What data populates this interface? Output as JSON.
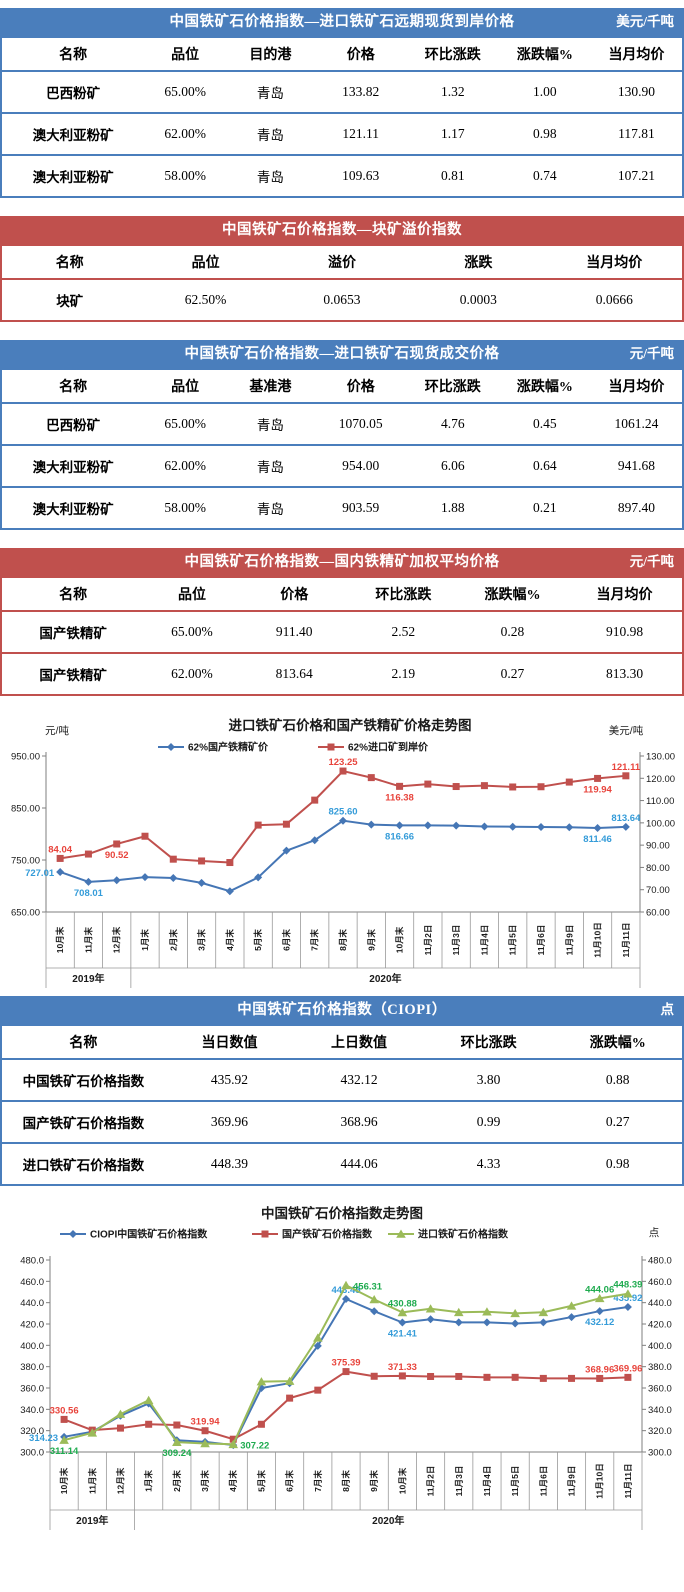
{
  "theme": {
    "blue": "#4a7ebc",
    "red": "#c0504d",
    "white": "#ffffff"
  },
  "tables": [
    {
      "theme": "blue",
      "title": "中国铁矿石价格指数—进口铁矿石远期现货到岸价格",
      "unit": "美元/千吨",
      "headers": [
        "名称",
        "品位",
        "目的港",
        "价格",
        "环比涨跌",
        "涨跌幅%",
        "当月均价"
      ],
      "rows": [
        [
          "巴西粉矿",
          "65.00%",
          "青岛",
          "133.82",
          "1.32",
          "1.00",
          "130.90"
        ],
        [
          "澳大利亚粉矿",
          "62.00%",
          "青岛",
          "121.11",
          "1.17",
          "0.98",
          "117.81"
        ],
        [
          "澳大利亚粉矿",
          "58.00%",
          "青岛",
          "109.63",
          "0.81",
          "0.74",
          "107.21"
        ]
      ]
    },
    {
      "theme": "red",
      "title": "中国铁矿石价格指数—块矿溢价指数",
      "unit": "",
      "headers": [
        "名称",
        "品位",
        "溢价",
        "涨跌",
        "当月均价"
      ],
      "rows": [
        [
          "块矿",
          "62.50%",
          "0.0653",
          "0.0003",
          "0.0666"
        ]
      ]
    },
    {
      "theme": "blue",
      "title": "中国铁矿石价格指数—进口铁矿石现货成交价格",
      "unit": "元/千吨",
      "headers": [
        "名称",
        "品位",
        "基准港",
        "价格",
        "环比涨跌",
        "涨跌幅%",
        "当月均价"
      ],
      "rows": [
        [
          "巴西粉矿",
          "65.00%",
          "青岛",
          "1070.05",
          "4.76",
          "0.45",
          "1061.24"
        ],
        [
          "澳大利亚粉矿",
          "62.00%",
          "青岛",
          "954.00",
          "6.06",
          "0.64",
          "941.68"
        ],
        [
          "澳大利亚粉矿",
          "58.00%",
          "青岛",
          "903.59",
          "1.88",
          "0.21",
          "897.40"
        ]
      ]
    },
    {
      "theme": "red",
      "title": "中国铁矿石价格指数—国内铁精矿加权平均价格",
      "unit": "元/千吨",
      "headers": [
        "名称",
        "品位",
        "价格",
        "环比涨跌",
        "涨跌幅%",
        "当月均价"
      ],
      "rows": [
        [
          "国产铁精矿",
          "65.00%",
          "911.40",
          "2.52",
          "0.28",
          "910.98"
        ],
        [
          "国产铁精矿",
          "62.00%",
          "813.64",
          "2.19",
          "0.27",
          "813.30"
        ]
      ]
    },
    {
      "theme": "blue",
      "title": "中国铁矿石价格指数（CIOPI）",
      "unit": "点",
      "headers": [
        "名称",
        "当日数值",
        "上日数值",
        "环比涨跌",
        "涨跌幅%"
      ],
      "rows": [
        [
          "中国铁矿石价格指数",
          "435.92",
          "432.12",
          "3.80",
          "0.88"
        ],
        [
          "国产铁矿石价格指数",
          "369.96",
          "368.96",
          "0.99",
          "0.27"
        ],
        [
          "进口铁矿石价格指数",
          "448.39",
          "444.06",
          "4.33",
          "0.98"
        ]
      ]
    }
  ],
  "chart_data": [
    {
      "type": "line",
      "title": "进口铁矿石价格和国产铁精矿价格走势图",
      "left_axis": {
        "unit": "元/吨",
        "min": 650,
        "max": 950,
        "ticks": [
          "950.00",
          "850.00",
          "750.00",
          "650.00"
        ]
      },
      "right_axis": {
        "unit": "美元/吨",
        "min": 60,
        "max": 130,
        "ticks": [
          "130.00",
          "120.00",
          "110.00",
          "100.00",
          "90.00",
          "80.00",
          "70.00",
          "60.00"
        ]
      },
      "categories": [
        "10月末",
        "11月末",
        "12月末",
        "1月末",
        "2月末",
        "3月末",
        "4月末",
        "5月末",
        "6月末",
        "7月末",
        "8月末",
        "9月末",
        "10月末",
        "11月2日",
        "11月3日",
        "11月4日",
        "11月5日",
        "11月6日",
        "11月9日",
        "11月10日",
        "11月11日"
      ],
      "year_groups": [
        {
          "label": "2019年",
          "span": 3
        },
        {
          "label": "2020年",
          "span": 18
        }
      ],
      "grid": false,
      "legend_position": "top",
      "series": [
        {
          "name": "62%国产铁精矿价",
          "marker": "diamond",
          "axis": "left",
          "color": "#4576b5",
          "label_color": "#359cd9",
          "values": [
            727.01,
            708.01,
            711.0,
            717.0,
            715.5,
            706.0,
            690.0,
            716.5,
            768.0,
            788.0,
            825.6,
            818.0,
            816.66,
            816.5,
            816.0,
            814.5,
            814.0,
            813.5,
            813.0,
            811.46,
            813.64
          ],
          "point_labels": [
            {
              "i": 0,
              "text": "727.01",
              "pos": "left"
            },
            {
              "i": 1,
              "text": "708.01",
              "pos": "below"
            },
            {
              "i": 10,
              "text": "825.60",
              "pos": "above"
            },
            {
              "i": 12,
              "text": "816.66",
              "pos": "below"
            },
            {
              "i": 19,
              "text": "811.46",
              "pos": "below"
            },
            {
              "i": 20,
              "text": "813.64",
              "pos": "above"
            }
          ]
        },
        {
          "name": "62%进口矿到岸价",
          "marker": "square",
          "axis": "right",
          "color": "#c0504d",
          "label_color": "#e8443c",
          "values": [
            84.04,
            86.0,
            90.52,
            94.0,
            83.7,
            82.9,
            82.2,
            99.0,
            99.4,
            110.2,
            123.25,
            120.3,
            116.38,
            117.4,
            116.3,
            116.7,
            116.1,
            116.2,
            118.3,
            119.94,
            121.11
          ],
          "point_labels": [
            {
              "i": 0,
              "text": "84.04",
              "pos": "above"
            },
            {
              "i": 2,
              "text": "90.52",
              "pos": "below"
            },
            {
              "i": 10,
              "text": "123.25",
              "pos": "above"
            },
            {
              "i": 12,
              "text": "116.38",
              "pos": "below"
            },
            {
              "i": 19,
              "text": "119.94",
              "pos": "below"
            },
            {
              "i": 20,
              "text": "121.11",
              "pos": "above"
            }
          ]
        }
      ]
    },
    {
      "type": "line",
      "title": "中国铁矿石价格指数走势图",
      "unit": "点",
      "left_axis": {
        "unit": "",
        "min": 300,
        "max": 480,
        "ticks": [
          "480.0",
          "460.0",
          "440.0",
          "420.0",
          "400.0",
          "380.0",
          "360.0",
          "340.0",
          "320.0",
          "300.0"
        ]
      },
      "right_axis": {
        "unit": "点",
        "min": 300,
        "max": 480,
        "ticks": [
          "480.0",
          "460.0",
          "440.0",
          "420.0",
          "400.0",
          "380.0",
          "360.0",
          "340.0",
          "320.0",
          "300.0"
        ]
      },
      "categories": [
        "10月末",
        "11月末",
        "12月末",
        "1月末",
        "2月末",
        "3月末",
        "4月末",
        "5月末",
        "6月末",
        "7月末",
        "8月末",
        "9月末",
        "10月末",
        "11月2日",
        "11月3日",
        "11月4日",
        "11月5日",
        "11月6日",
        "11月9日",
        "11月10日",
        "11月11日"
      ],
      "year_groups": [
        {
          "label": "2019年",
          "span": 3
        },
        {
          "label": "2020年",
          "span": 18
        }
      ],
      "grid": false,
      "legend_position": "top",
      "series": [
        {
          "name": "CIOPI中国铁矿石价格指数",
          "marker": "diamond",
          "axis": "left",
          "color": "#4576b5",
          "label_color": "#359cd9",
          "values": [
            314.23,
            319.0,
            334.0,
            345.5,
            311.0,
            309.5,
            306.5,
            360.0,
            364.5,
            399.5,
            443.45,
            432.0,
            421.41,
            424.5,
            421.5,
            421.5,
            420.5,
            421.5,
            426.5,
            432.12,
            435.92
          ],
          "point_labels": [
            {
              "i": 0,
              "text": "314.23",
              "pos": "left"
            },
            {
              "i": 10,
              "text": "443.45",
              "pos": "above"
            },
            {
              "i": 12,
              "text": "421.41",
              "pos": "below"
            },
            {
              "i": 19,
              "text": "432.12",
              "pos": "below"
            },
            {
              "i": 20,
              "text": "435.92",
              "pos": "above"
            }
          ]
        },
        {
          "name": "国产铁矿石价格指数",
          "marker": "square",
          "axis": "left",
          "color": "#c0504d",
          "label_color": "#e8443c",
          "values": [
            330.56,
            320.5,
            322.4,
            326.0,
            325.3,
            319.94,
            312.0,
            326.0,
            350.5,
            358.0,
            375.39,
            371.0,
            371.33,
            370.8,
            370.8,
            370.0,
            370.0,
            369.0,
            369.0,
            368.96,
            369.96
          ],
          "point_labels": [
            {
              "i": 0,
              "text": "330.56",
              "pos": "above"
            },
            {
              "i": 5,
              "text": "319.94",
              "pos": "above"
            },
            {
              "i": 10,
              "text": "375.39",
              "pos": "above"
            },
            {
              "i": 12,
              "text": "371.33",
              "pos": "above"
            },
            {
              "i": 19,
              "text": "368.96",
              "pos": "above"
            },
            {
              "i": 20,
              "text": "369.96",
              "pos": "above"
            }
          ]
        },
        {
          "name": "进口铁矿石价格指数",
          "marker": "triangle",
          "axis": "left",
          "color": "#9bbb59",
          "label_color": "#1fab4f",
          "values": [
            311.14,
            318.0,
            335.5,
            348.5,
            309.24,
            308.0,
            307.22,
            366.0,
            366.5,
            407.0,
            456.31,
            443.0,
            430.88,
            434.3,
            431.0,
            431.5,
            430.0,
            431.0,
            437.0,
            444.06,
            448.39
          ],
          "point_labels": [
            {
              "i": 0,
              "text": "311.14",
              "pos": "below"
            },
            {
              "i": 4,
              "text": "309.24",
              "pos": "below"
            },
            {
              "i": 6,
              "text": "307.22",
              "pos": "right"
            },
            {
              "i": 10,
              "text": "456.31",
              "pos": "right"
            },
            {
              "i": 12,
              "text": "430.88",
              "pos": "above"
            },
            {
              "i": 19,
              "text": "444.06",
              "pos": "above"
            },
            {
              "i": 20,
              "text": "448.39",
              "pos": "above"
            }
          ]
        }
      ]
    }
  ]
}
